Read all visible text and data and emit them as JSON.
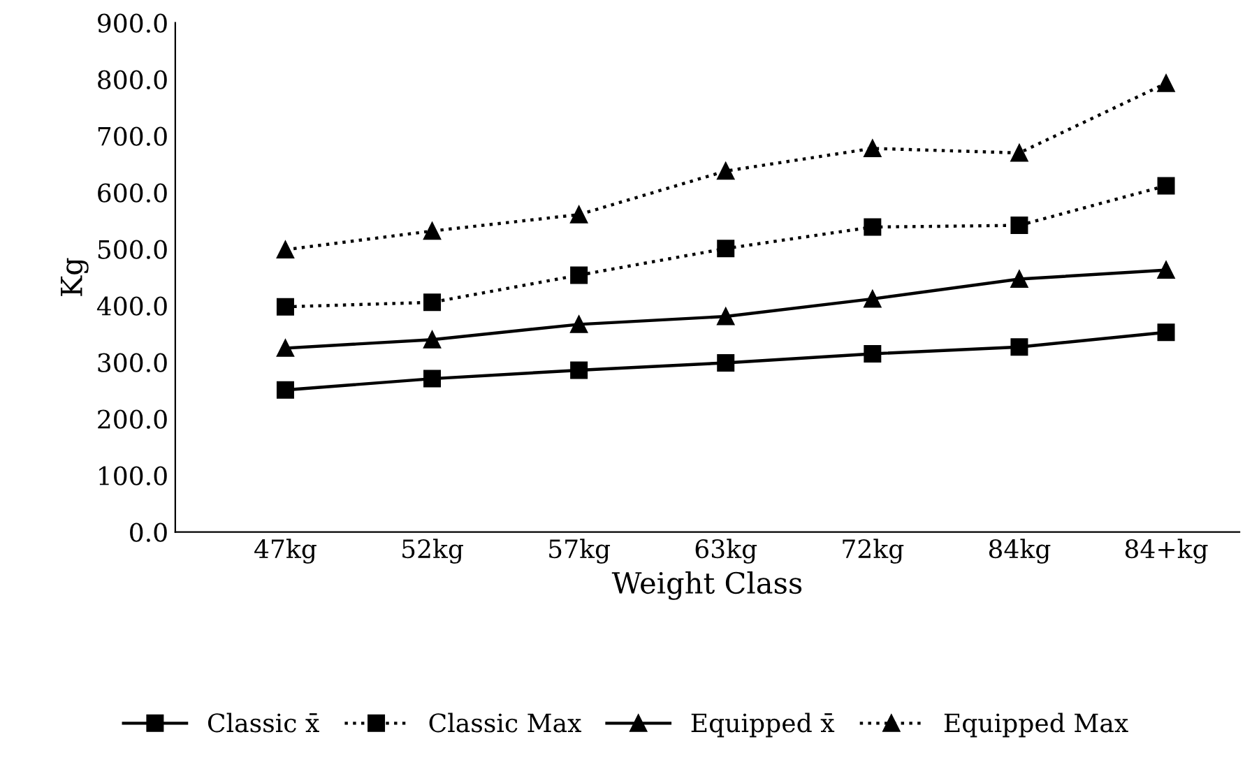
{
  "chart_data": {
    "type": "line",
    "xlabel": "Weight Class",
    "ylabel": "Kg",
    "categories": [
      "47kg",
      "52kg",
      "57kg",
      "63kg",
      "72kg",
      "84kg",
      "84+kg"
    ],
    "series": [
      {
        "name": "Classic x̄",
        "color": "#000000",
        "marker": "square",
        "line_style": "solid",
        "values": [
          251,
          271,
          286,
          299,
          315,
          327,
          353
        ]
      },
      {
        "name": "Classic Max",
        "color": "#000000",
        "marker": "square",
        "line_style": "dotted",
        "values": [
          398,
          406,
          454,
          501,
          539,
          542,
          612
        ]
      },
      {
        "name": "Equipped x̄",
        "color": "#000000",
        "marker": "triangle",
        "line_style": "solid",
        "values": [
          325,
          340,
          367,
          381,
          412,
          447,
          463
        ]
      },
      {
        "name": "Equipped Max",
        "color": "#000000",
        "marker": "triangle",
        "line_style": "dotted",
        "values": [
          499,
          532,
          561,
          638,
          678,
          670,
          793
        ]
      }
    ],
    "ylim": [
      0,
      900
    ],
    "yticks": [
      {
        "value": 0,
        "label": "0.0"
      },
      {
        "value": 100,
        "label": "100.0"
      },
      {
        "value": 200,
        "label": "200.0"
      },
      {
        "value": 300,
        "label": "300.0"
      },
      {
        "value": 400,
        "label": "400.0"
      },
      {
        "value": 500,
        "label": "500.0"
      },
      {
        "value": 600,
        "label": "600.0"
      },
      {
        "value": 700,
        "label": "700.0"
      },
      {
        "value": 800,
        "label": "800.0"
      },
      {
        "value": 900,
        "label": "900.0"
      }
    ],
    "grid": false,
    "legend": "bottom"
  }
}
